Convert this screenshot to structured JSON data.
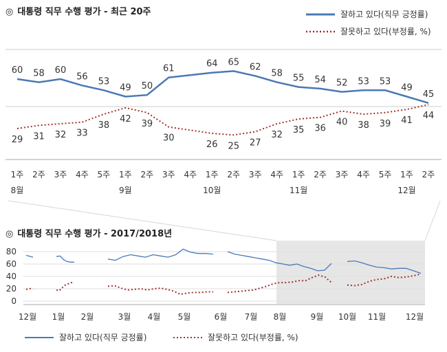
{
  "chart_data": [
    {
      "type": "line",
      "title": "대통령 직무 수행 평가 - 최근 20주",
      "title_prefix": "◎",
      "categories": [
        "1주",
        "2주",
        "3주",
        "4주",
        "5주",
        "1주",
        "2주",
        "3주",
        "4주",
        "1주",
        "2주",
        "3주",
        "4주",
        "1주",
        "2주",
        "3주",
        "4주",
        "5주",
        "1주",
        "2주"
      ],
      "month_labels": [
        {
          "index": 0,
          "label": "8월"
        },
        {
          "index": 5,
          "label": "9월"
        },
        {
          "index": 9,
          "label": "10월"
        },
        {
          "index": 13,
          "label": "11월"
        },
        {
          "index": 18,
          "label": "12월"
        }
      ],
      "series": [
        {
          "name": "잘하고 있다(직무 긍정률)",
          "color": "#4a78b6",
          "style": "solid",
          "values": [
            60,
            58,
            60,
            56,
            53,
            49,
            50,
            61,
            null,
            64,
            65,
            62,
            58,
            55,
            54,
            52,
            53,
            53,
            49,
            45
          ]
        },
        {
          "name": "잘못하고 있다(부정률, %)",
          "color": "#a0302a",
          "style": "dotted",
          "values": [
            29,
            31,
            32,
            33,
            38,
            42,
            39,
            30,
            null,
            26,
            25,
            27,
            32,
            35,
            36,
            40,
            38,
            39,
            41,
            44
          ]
        }
      ],
      "legend_position": "top-right"
    },
    {
      "type": "line",
      "title": "대통령 직무 수행 평가 - 2017/2018년",
      "title_prefix": "◎",
      "yticks": [
        0,
        20,
        40,
        60,
        80
      ],
      "ylim": [
        0,
        90
      ],
      "month_labels": [
        "12월",
        "1월",
        "2월",
        "3월",
        "4월",
        "5월",
        "6월",
        "7월",
        "8월",
        "9월",
        "10월",
        "11월",
        "12월"
      ],
      "highlight_range": [
        "8월",
        "12월"
      ],
      "series": [
        {
          "name": "잘하고 있다(직무 긍정률)",
          "color": "#4a78b6",
          "style": "solid",
          "segments": [
            [
              74,
              71
            ],
            [
              72,
              73,
              67,
              64,
              63,
              63
            ],
            [
              68,
              66,
              72,
              75,
              73,
              71,
              75,
              73,
              71,
              75,
              84,
              79,
              77,
              77,
              76
            ],
            [
              80,
              76,
              74,
              72,
              70,
              68,
              66,
              62,
              60,
              58,
              60,
              56,
              53,
              49,
              50,
              61
            ],
            [
              64,
              65,
              62,
              58,
              55,
              54,
              52,
              53,
              53,
              49,
              45
            ]
          ]
        },
        {
          "name": "잘못하고 있다(부정률, %)",
          "color": "#a0302a",
          "style": "dotted",
          "segments": [
            [
              19,
              21
            ],
            [
              18,
              17,
              22,
              26,
              28,
              30,
              29
            ],
            [
              24,
              25,
              21,
              18,
              19,
              20,
              18,
              20,
              21,
              19,
              16,
              11,
              13,
              14,
              14,
              15,
              15
            ],
            [
              14,
              15,
              16,
              17,
              18,
              21,
              24,
              28,
              30,
              30,
              31,
              33,
              33,
              38,
              42,
              39,
              30
            ],
            [
              26,
              25,
              27,
              32,
              35,
              36,
              40,
              38,
              39,
              41,
              44
            ]
          ]
        }
      ],
      "legend_position": "bottom"
    }
  ]
}
